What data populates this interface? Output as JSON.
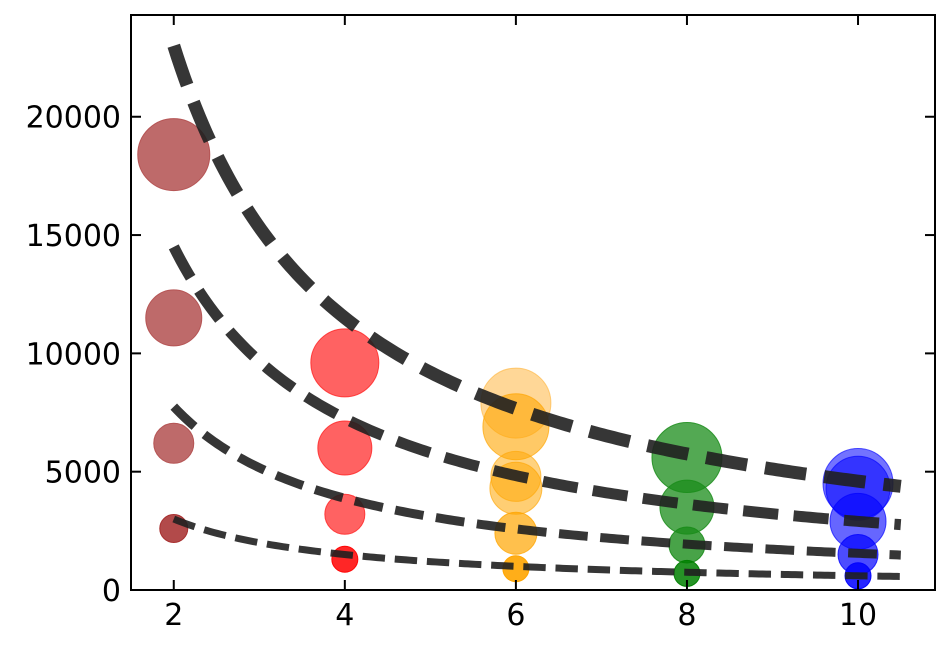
{
  "chart_data": {
    "type": "scatter",
    "title": "",
    "xlabel": "",
    "ylabel": "",
    "xlim": [
      1.5,
      10.9
    ],
    "ylim": [
      0,
      24300
    ],
    "x_ticks": [
      2,
      4,
      6,
      8,
      10
    ],
    "y_ticks": [
      0,
      5000,
      10000,
      15000,
      20000
    ],
    "x_tick_labels": [
      "2",
      "4",
      "6",
      "8",
      "10"
    ],
    "y_tick_labels": [
      "0",
      "5000",
      "10000",
      "15000",
      "20000"
    ],
    "grid": false,
    "legend": "none",
    "points": [
      {
        "x": 2,
        "y": 18400,
        "size": 36,
        "color": "#b35050",
        "opacity": 0.85
      },
      {
        "x": 2,
        "y": 11500,
        "size": 28,
        "color": "#b35050",
        "opacity": 0.85
      },
      {
        "x": 2,
        "y": 6200,
        "size": 20,
        "color": "#b35050",
        "opacity": 0.85
      },
      {
        "x": 2,
        "y": 2600,
        "size": 14,
        "color": "#a52a2a",
        "opacity": 0.85
      },
      {
        "x": 4,
        "y": 9600,
        "size": 34,
        "color": "#ff2020",
        "opacity": 0.7
      },
      {
        "x": 4,
        "y": 6000,
        "size": 27,
        "color": "#ff2020",
        "opacity": 0.7
      },
      {
        "x": 4,
        "y": 3200,
        "size": 20,
        "color": "#ff2020",
        "opacity": 0.7
      },
      {
        "x": 4,
        "y": 1300,
        "size": 13,
        "color": "#ff0000",
        "opacity": 0.85
      },
      {
        "x": 6,
        "y": 7900,
        "size": 35,
        "color": "#ffb030",
        "opacity": 0.5
      },
      {
        "x": 6,
        "y": 6900,
        "size": 33,
        "color": "#ffa500",
        "opacity": 0.6
      },
      {
        "x": 6,
        "y": 4800,
        "size": 25,
        "color": "#ffa500",
        "opacity": 0.5
      },
      {
        "x": 6,
        "y": 4300,
        "size": 26,
        "color": "#ffa500",
        "opacity": 0.55
      },
      {
        "x": 6,
        "y": 2400,
        "size": 21,
        "color": "#ffa500",
        "opacity": 0.7
      },
      {
        "x": 6,
        "y": 900,
        "size": 13,
        "color": "#ffa500",
        "opacity": 0.9
      },
      {
        "x": 8,
        "y": 5600,
        "size": 35,
        "color": "#1a8c1a",
        "opacity": 0.75
      },
      {
        "x": 8,
        "y": 3500,
        "size": 27,
        "color": "#1a8c1a",
        "opacity": 0.75
      },
      {
        "x": 8,
        "y": 1900,
        "size": 18,
        "color": "#1a8c1a",
        "opacity": 0.8
      },
      {
        "x": 8,
        "y": 700,
        "size": 13,
        "color": "#008000",
        "opacity": 0.85
      },
      {
        "x": 10,
        "y": 4500,
        "size": 35,
        "color": "#0000ff",
        "opacity": 0.55
      },
      {
        "x": 10,
        "y": 4300,
        "size": 32,
        "color": "#0000ff",
        "opacity": 0.55
      },
      {
        "x": 10,
        "y": 2900,
        "size": 28,
        "color": "#0000ff",
        "opacity": 0.6
      },
      {
        "x": 10,
        "y": 1500,
        "size": 20,
        "color": "#0000ff",
        "opacity": 0.7
      },
      {
        "x": 10,
        "y": 600,
        "size": 13,
        "color": "#0000ff",
        "opacity": 0.85
      }
    ],
    "curves": [
      {
        "a": 46000,
        "linewidth": 13,
        "color": "#202020"
      },
      {
        "a": 29000,
        "linewidth": 11,
        "color": "#202020"
      },
      {
        "a": 15500,
        "linewidth": 9,
        "color": "#202020"
      },
      {
        "a": 6000,
        "linewidth": 7,
        "color": "#202020"
      }
    ],
    "curve_form": "y = a / x",
    "curve_x_range": [
      2,
      10.5
    ]
  }
}
